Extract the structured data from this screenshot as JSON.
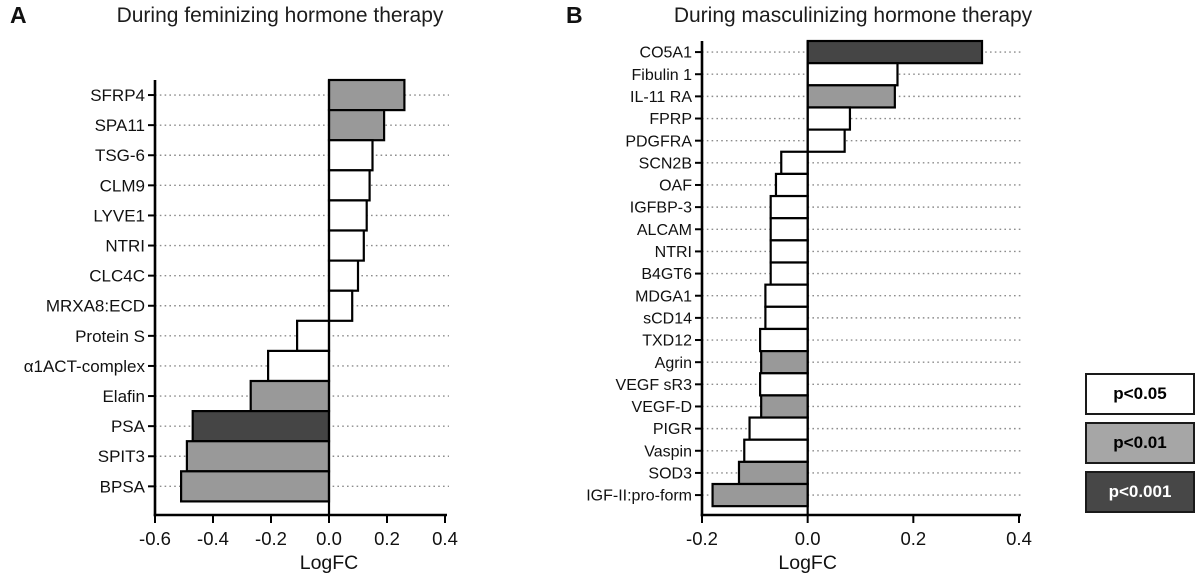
{
  "figure": {
    "panel_a_letter": "A",
    "panel_b_letter": "B"
  },
  "sig_colors": {
    "p<0.05": "#ffffff",
    "p<0.01": "#999999",
    "p<0.001": "#454545"
  },
  "legend": {
    "items": [
      {
        "label": "p<0.05",
        "fill": "#ffffff",
        "text": "#000000"
      },
      {
        "label": "p<0.01",
        "fill": "#a6a6a6",
        "text": "#000000"
      },
      {
        "label": "p<0.001",
        "fill": "#474747",
        "text": "#ffffff"
      }
    ]
  },
  "chart_data": [
    {
      "type": "bar",
      "orientation": "horizontal",
      "panel": "A",
      "title": "During feminizing hormone therapy",
      "xlabel": "LogFC",
      "xlim": [
        -0.6,
        0.4
      ],
      "xticks": [
        -0.6,
        -0.4,
        -0.2,
        0.0,
        0.2,
        0.4
      ],
      "xtick_labels": [
        "-0.6",
        "-0.4",
        "-0.2",
        "0.0",
        "0.2",
        "0.4"
      ],
      "grid": "dotted-horizontal",
      "legend_position": "outside-right",
      "categories": [
        "SFRP4",
        "SPA11",
        "TSG-6",
        "CLM9",
        "LYVE1",
        "NTRI",
        "CLC4C",
        "MRXA8:ECD",
        "Protein S",
        "α1ACT-complex",
        "Elafin",
        "PSA",
        "SPIT3",
        "BPSA"
      ],
      "values": [
        0.26,
        0.19,
        0.15,
        0.14,
        0.13,
        0.12,
        0.1,
        0.08,
        -0.11,
        -0.21,
        -0.27,
        -0.47,
        -0.49,
        -0.51
      ],
      "significance": [
        "p<0.01",
        "p<0.01",
        "p<0.05",
        "p<0.05",
        "p<0.05",
        "p<0.05",
        "p<0.05",
        "p<0.05",
        "p<0.05",
        "p<0.05",
        "p<0.01",
        "p<0.001",
        "p<0.01",
        "p<0.01"
      ]
    },
    {
      "type": "bar",
      "orientation": "horizontal",
      "panel": "B",
      "title": "During masculinizing hormone therapy",
      "xlabel": "LogFC",
      "xlim": [
        -0.2,
        0.4
      ],
      "xticks": [
        -0.2,
        0.0,
        0.2,
        0.4
      ],
      "xtick_labels": [
        "-0.2",
        "0.0",
        "0.2",
        "0.4"
      ],
      "grid": "dotted-horizontal",
      "legend_position": "outside-right",
      "categories": [
        "CO5A1",
        "Fibulin 1",
        "IL-11 RA",
        "FPRP",
        "PDGFRA",
        "SCN2B",
        "OAF",
        "IGFBP-3",
        "ALCAM",
        "NTRI",
        "B4GT6",
        "MDGA1",
        "sCD14",
        "TXD12",
        "Agrin",
        "VEGF sR3",
        "VEGF-D",
        "PIGR",
        "Vaspin",
        "SOD3",
        "IGF-II:pro-form"
      ],
      "values": [
        0.33,
        0.17,
        0.165,
        0.08,
        0.07,
        -0.05,
        -0.06,
        -0.07,
        -0.07,
        -0.07,
        -0.07,
        -0.08,
        -0.08,
        -0.09,
        -0.088,
        -0.09,
        -0.088,
        -0.11,
        -0.12,
        -0.13,
        -0.18
      ],
      "significance": [
        "p<0.001",
        "p<0.05",
        "p<0.01",
        "p<0.05",
        "p<0.05",
        "p<0.05",
        "p<0.05",
        "p<0.05",
        "p<0.05",
        "p<0.05",
        "p<0.05",
        "p<0.05",
        "p<0.05",
        "p<0.05",
        "p<0.01",
        "p<0.05",
        "p<0.01",
        "p<0.05",
        "p<0.05",
        "p<0.01",
        "p<0.01"
      ]
    }
  ]
}
